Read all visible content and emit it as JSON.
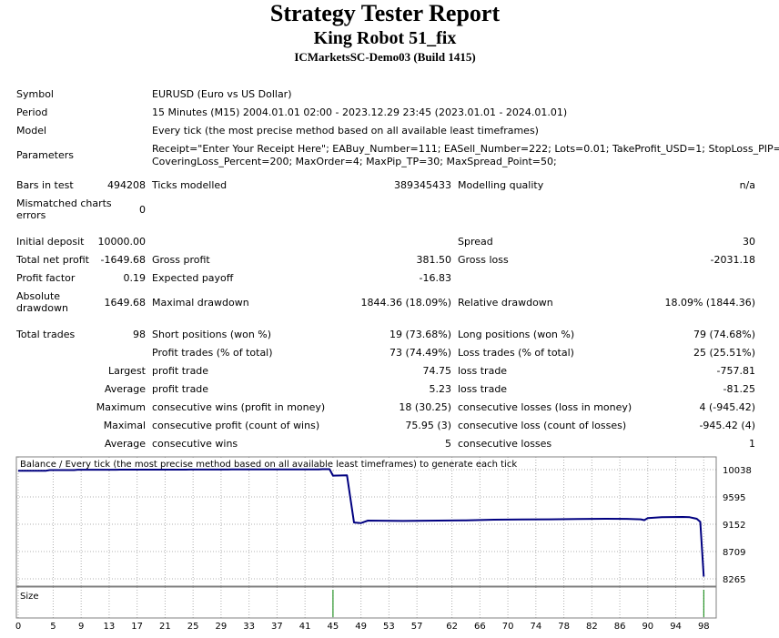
{
  "header": {
    "title": "Strategy Tester Report",
    "robot": "King Robot 51_fix",
    "server": "ICMarketsSC-Demo03 (Build 1415)"
  },
  "info": {
    "symbol_label": "Symbol",
    "symbol_value": "EURUSD (Euro vs US Dollar)",
    "period_label": "Period",
    "period_value": "15 Minutes (M15) 2004.01.01 02:00 - 2023.12.29 23:45 (2023.01.01 - 2024.01.01)",
    "model_label": "Model",
    "model_value": "Every tick (the most precise method based on all available least timeframes)",
    "params_label": "Parameters",
    "params_line1": "Receipt=\"Enter Your Receipt Here\"; EABuy_Number=111; EASell_Number=222; Lots=0.01; TakeProfit_USD=1; StopLoss_PIP=60;",
    "params_line2": "CoveringLoss_Percent=200; MaxOrder=4; MaxPip_TP=30; MaxSpread_Point=50;"
  },
  "stats": {
    "bars_label": "Bars in test",
    "bars_value": "494208",
    "ticks_label": "Ticks modelled",
    "ticks_value": "389345433",
    "quality_label": "Modelling quality",
    "quality_value": "n/a",
    "mismatch_label_1": "Mismatched charts",
    "mismatch_label_2": "errors",
    "mismatch_value": "0",
    "deposit_label": "Initial deposit",
    "deposit_value": "10000.00",
    "spread_label": "Spread",
    "spread_value": "30",
    "netprofit_label": "Total net profit",
    "netprofit_value": "-1649.68",
    "grossprofit_label": "Gross profit",
    "grossprofit_value": "381.50",
    "grossloss_label": "Gross loss",
    "grossloss_value": "-2031.18",
    "pf_label": "Profit factor",
    "pf_value": "0.19",
    "payoff_label": "Expected payoff",
    "payoff_value": "-16.83",
    "absdd_label_1": "Absolute",
    "absdd_label_2": "drawdown",
    "absdd_value": "1649.68",
    "maxdd_label": "Maximal drawdown",
    "maxdd_value": "1844.36 (18.09%)",
    "reldd_label": "Relative drawdown",
    "reldd_value": "18.09% (1844.36)",
    "trades_label": "Total trades",
    "trades_value": "98",
    "short_label": "Short positions (won %)",
    "short_value": "19 (73.68%)",
    "long_label": "Long positions (won %)",
    "long_value": "79 (74.68%)",
    "profit_trades_label": "Profit trades (% of total)",
    "profit_trades_value": "73 (74.49%)",
    "loss_trades_label": "Loss trades (% of total)",
    "loss_trades_value": "25 (25.51%)",
    "largest_label": "Largest",
    "largest_pt_label": "profit trade",
    "largest_pt_value": "74.75",
    "largest_lt_label": "loss trade",
    "largest_lt_value": "-757.81",
    "average_label": "Average",
    "average_pt_label": "profit trade",
    "average_pt_value": "5.23",
    "average_lt_label": "loss trade",
    "average_lt_value": "-81.25",
    "maximum_label": "Maximum",
    "max_cw_label": "consecutive wins (profit in money)",
    "max_cw_value": "18 (30.25)",
    "max_cl_label": "consecutive losses (loss in money)",
    "max_cl_value": "4 (-945.42)",
    "maximal_label": "Maximal",
    "mxl_cp_label": "consecutive profit (count of wins)",
    "mxl_cp_value": "75.95 (3)",
    "mxl_cl_label": "consecutive loss (count of losses)",
    "mxl_cl_value": "-945.42 (4)",
    "avg2_label": "Average",
    "avg_cw_label": "consecutive wins",
    "avg_cw_value": "5",
    "avg_cl_label": "consecutive losses",
    "avg_cl_value": "1"
  },
  "chart_data": {
    "type": "line",
    "title": "Balance / Every tick (the most precise method based on all available least timeframes) to generate each tick",
    "size_label": "Size",
    "ylim": [
      8265,
      10150
    ],
    "yticks": [
      10038,
      9595,
      9152,
      8709,
      8265
    ],
    "xticks": [
      0,
      5,
      9,
      13,
      17,
      21,
      25,
      29,
      33,
      37,
      41,
      45,
      49,
      53,
      57,
      62,
      66,
      70,
      74,
      78,
      82,
      86,
      90,
      94,
      98
    ],
    "xlim": [
      0,
      99
    ],
    "series": [
      {
        "color": "#000080",
        "x": [
          0,
          4,
          4.5,
          8,
          8.5,
          14,
          14.5,
          24,
          24.5,
          30,
          30.5,
          36,
          36.5,
          43,
          43.5,
          44.5,
          45,
          47,
          48,
          49,
          50,
          55,
          60,
          64,
          68,
          72,
          76,
          80,
          84,
          87,
          89,
          89.5,
          90,
          92,
          95,
          96,
          97,
          97.5,
          98
        ],
        "y": [
          10020,
          10020,
          10030,
          10030,
          10036,
          10036,
          10038,
          10038,
          10040,
          10040,
          10041,
          10041,
          10043,
          10043,
          10046,
          10046,
          9940,
          9945,
          9180,
          9170,
          9210,
          9205,
          9210,
          9215,
          9225,
          9230,
          9232,
          9236,
          9240,
          9238,
          9232,
          9218,
          9250,
          9265,
          9270,
          9265,
          9240,
          9190,
          8300
        ]
      }
    ],
    "size_bars": [
      {
        "x": 45,
        "color": "#008000",
        "height": 1
      },
      {
        "x": 98,
        "color": "#008000",
        "height": 1
      }
    ],
    "grid": true
  }
}
